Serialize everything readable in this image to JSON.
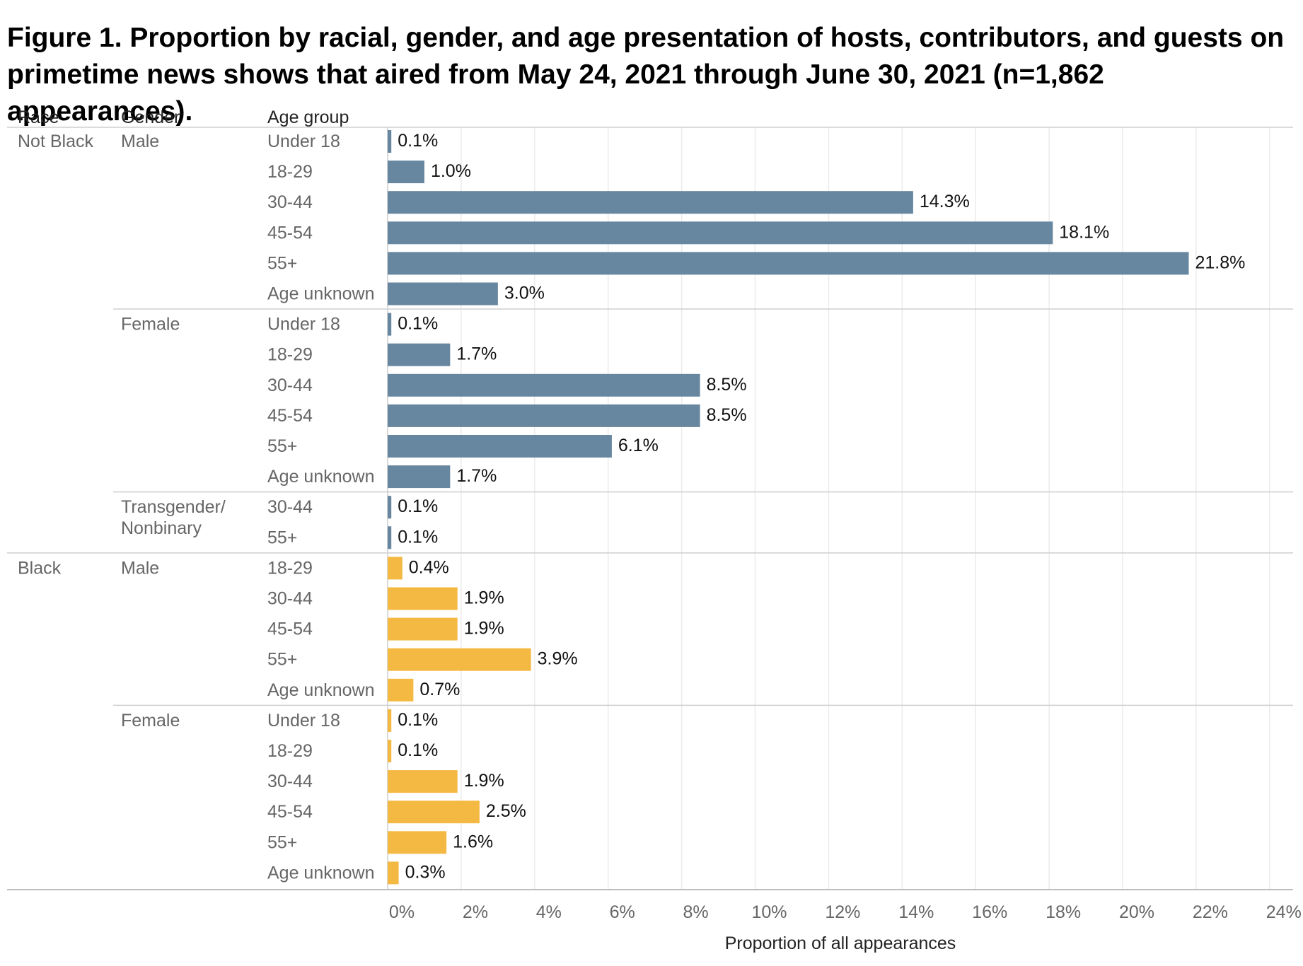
{
  "chart_data": {
    "type": "bar",
    "orientation": "horizontal",
    "title": "Figure 1. Proportion by racial, gender, and age presentation of hosts, contributors, and guests on\nprimetime news shows that aired from May 24, 2021 through June 30, 2021 (n=1,862 appearances).",
    "column_headers": [
      "Race",
      "Gender",
      "Age group"
    ],
    "xlabel": "Proportion of all appearances",
    "xlim": [
      0,
      24
    ],
    "x_ticks": [
      "0%",
      "2%",
      "4%",
      "6%",
      "8%",
      "10%",
      "12%",
      "14%",
      "16%",
      "18%",
      "20%",
      "22%",
      "24%"
    ],
    "grid": true,
    "colors": {
      "Not Black": "#67869f",
      "Black": "#f4b942"
    },
    "rows": [
      {
        "race": "Not Black",
        "gender": "Male",
        "age": "Under 18",
        "value": 0.1,
        "label": "0.1%"
      },
      {
        "race": "Not Black",
        "gender": "Male",
        "age": "18-29",
        "value": 1.0,
        "label": "1.0%"
      },
      {
        "race": "Not Black",
        "gender": "Male",
        "age": "30-44",
        "value": 14.3,
        "label": "14.3%"
      },
      {
        "race": "Not Black",
        "gender": "Male",
        "age": "45-54",
        "value": 18.1,
        "label": "18.1%"
      },
      {
        "race": "Not Black",
        "gender": "Male",
        "age": "55+",
        "value": 21.8,
        "label": "21.8%"
      },
      {
        "race": "Not Black",
        "gender": "Male",
        "age": "Age unknown",
        "value": 3.0,
        "label": "3.0%"
      },
      {
        "race": "Not Black",
        "gender": "Female",
        "age": "Under 18",
        "value": 0.1,
        "label": "0.1%"
      },
      {
        "race": "Not Black",
        "gender": "Female",
        "age": "18-29",
        "value": 1.7,
        "label": "1.7%"
      },
      {
        "race": "Not Black",
        "gender": "Female",
        "age": "30-44",
        "value": 8.5,
        "label": "8.5%"
      },
      {
        "race": "Not Black",
        "gender": "Female",
        "age": "45-54",
        "value": 8.5,
        "label": "8.5%"
      },
      {
        "race": "Not Black",
        "gender": "Female",
        "age": "55+",
        "value": 6.1,
        "label": "6.1%"
      },
      {
        "race": "Not Black",
        "gender": "Female",
        "age": "Age unknown",
        "value": 1.7,
        "label": "1.7%"
      },
      {
        "race": "Not Black",
        "gender": "Transgender/\nNonbinary",
        "age": "30-44",
        "value": 0.1,
        "label": "0.1%"
      },
      {
        "race": "Not Black",
        "gender": "Transgender/\nNonbinary",
        "age": "55+",
        "value": 0.1,
        "label": "0.1%"
      },
      {
        "race": "Black",
        "gender": "Male",
        "age": "18-29",
        "value": 0.4,
        "label": "0.4%"
      },
      {
        "race": "Black",
        "gender": "Male",
        "age": "30-44",
        "value": 1.9,
        "label": "1.9%"
      },
      {
        "race": "Black",
        "gender": "Male",
        "age": "45-54",
        "value": 1.9,
        "label": "1.9%"
      },
      {
        "race": "Black",
        "gender": "Male",
        "age": "55+",
        "value": 3.9,
        "label": "3.9%"
      },
      {
        "race": "Black",
        "gender": "Male",
        "age": "Age unknown",
        "value": 0.7,
        "label": "0.7%"
      },
      {
        "race": "Black",
        "gender": "Female",
        "age": "Under 18",
        "value": 0.1,
        "label": "0.1%"
      },
      {
        "race": "Black",
        "gender": "Female",
        "age": "18-29",
        "value": 0.1,
        "label": "0.1%"
      },
      {
        "race": "Black",
        "gender": "Female",
        "age": "30-44",
        "value": 1.9,
        "label": "1.9%"
      },
      {
        "race": "Black",
        "gender": "Female",
        "age": "45-54",
        "value": 2.5,
        "label": "2.5%"
      },
      {
        "race": "Black",
        "gender": "Female",
        "age": "55+",
        "value": 1.6,
        "label": "1.6%"
      },
      {
        "race": "Black",
        "gender": "Female",
        "age": "Age unknown",
        "value": 0.3,
        "label": "0.3%"
      }
    ]
  }
}
